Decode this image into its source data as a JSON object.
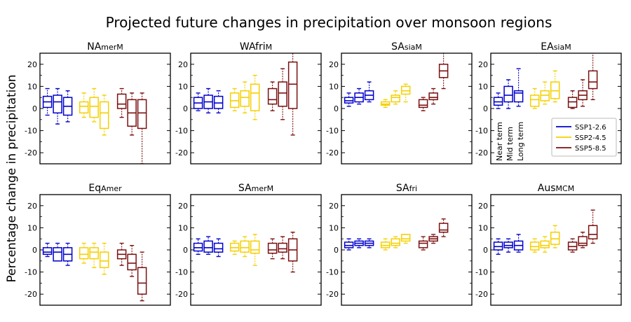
{
  "figure": {
    "title": "Projected future changes in precipitation over monsoon regions",
    "ylabel": "Percentage change in precipitation"
  },
  "colors": {
    "SSP1-2.6": "#0000cc",
    "SSP2-4.5": "#f5d000",
    "SSP5-8.5": "#7a1010"
  },
  "legend": {
    "placement": "lower-right of EAsiaM panel",
    "entries": [
      "SSP1-2.6",
      "SSP2-4.5",
      "SSP5-8.5"
    ]
  },
  "term_labels": [
    "Near term",
    "Mid term",
    "Long term"
  ],
  "chart_data": [
    {
      "type": "box",
      "name_main": "NA",
      "name_sub": "merM",
      "ylim": [
        -25,
        25
      ],
      "yticks": [
        -20,
        -10,
        0,
        10,
        20
      ],
      "scenarios": [
        "SSP1-2.6",
        "SSP2-4.5",
        "SSP5-8.5"
      ],
      "terms": [
        "Near term",
        "Mid term",
        "Long term"
      ],
      "boxes": [
        [
          [
            -3,
            0.5,
            3,
            5.5,
            9
          ],
          [
            -7,
            -2,
            3,
            6,
            9
          ],
          [
            -6,
            -3,
            1,
            5,
            8
          ]
        ],
        [
          [
            -4,
            -2,
            1,
            3,
            7
          ],
          [
            -6,
            -4,
            1,
            5,
            9
          ],
          [
            -12,
            -9,
            -2,
            3,
            6
          ]
        ],
        [
          [
            -4,
            0,
            2,
            6.5,
            9
          ],
          [
            -12,
            -8,
            -2,
            4,
            7
          ],
          [
            -25,
            -9,
            -2,
            4,
            7
          ]
        ]
      ]
    },
    {
      "type": "box",
      "name_main": "WAfri",
      "name_sub": "M",
      "ylim": [
        -25,
        25
      ],
      "yticks": [
        -20,
        -10,
        0,
        10,
        20
      ],
      "scenarios": [
        "SSP1-2.6",
        "SSP2-4.5",
        "SSP5-8.5"
      ],
      "terms": [
        "Near term",
        "Mid term",
        "Long term"
      ],
      "boxes": [
        [
          [
            -1,
            0,
            2.5,
            5,
            7
          ],
          [
            -2,
            0,
            3,
            6,
            9
          ],
          [
            -2,
            0,
            2.5,
            5.5,
            8
          ]
        ],
        [
          [
            -1,
            0.5,
            3.5,
            7,
            9
          ],
          [
            -2,
            1,
            5,
            8,
            12
          ],
          [
            -5,
            -1,
            7,
            11,
            15
          ]
        ],
        [
          [
            -1,
            2,
            4,
            9,
            12
          ],
          [
            -5,
            1,
            7,
            12,
            18
          ],
          [
            -12,
            0,
            11,
            21,
            26
          ]
        ]
      ]
    },
    {
      "type": "box",
      "name_main": "SA",
      "name_sub": "siaM",
      "ylim": [
        -25,
        25
      ],
      "yticks": [
        -20,
        -10,
        0,
        10,
        20
      ],
      "scenarios": [
        "SSP1-2.6",
        "SSP2-4.5",
        "SSP5-8.5"
      ],
      "terms": [
        "Near term",
        "Mid term",
        "Long term"
      ],
      "boxes": [
        [
          [
            1,
            2.5,
            3.5,
            5,
            7
          ],
          [
            2,
            3,
            5,
            7,
            9
          ],
          [
            3,
            4,
            6,
            8,
            12
          ]
        ],
        [
          [
            0.5,
            1.5,
            2,
            3,
            4
          ],
          [
            2,
            3,
            5,
            6,
            8
          ],
          [
            3,
            6.5,
            8,
            10,
            11
          ]
        ],
        [
          [
            -1,
            0.5,
            1.5,
            4,
            5
          ],
          [
            2,
            4,
            5,
            7,
            9
          ],
          [
            9,
            14,
            17,
            20,
            26
          ]
        ]
      ]
    },
    {
      "type": "box",
      "name_main": "EA",
      "name_sub": "siaM",
      "ylim": [
        -25,
        25
      ],
      "yticks": [
        -20,
        -10,
        0,
        10,
        20
      ],
      "scenarios": [
        "SSP1-2.6",
        "SSP2-4.5",
        "SSP5-8.5"
      ],
      "terms": [
        "Near term",
        "Mid term",
        "Long term"
      ],
      "boxes": [
        [
          [
            0,
            1.5,
            3,
            5,
            7
          ],
          [
            0,
            3,
            6,
            10,
            13
          ],
          [
            1,
            3,
            7,
            8,
            18
          ]
        ],
        [
          [
            0,
            1,
            4,
            6,
            9
          ],
          [
            2,
            3.5,
            6,
            8,
            12
          ],
          [
            3,
            4.5,
            8,
            12,
            17
          ]
        ],
        [
          [
            0,
            0.5,
            3,
            5,
            8
          ],
          [
            1,
            4,
            6,
            8,
            13
          ],
          [
            4,
            9,
            12,
            17,
            26
          ]
        ]
      ]
    },
    {
      "type": "box",
      "name_main": "Eq",
      "name_sub": "Amer",
      "ylim": [
        -25,
        25
      ],
      "yticks": [
        -20,
        -10,
        0,
        10,
        20
      ],
      "scenarios": [
        "SSP1-2.6",
        "SSP2-4.5",
        "SSP5-8.5"
      ],
      "terms": [
        "Near term",
        "Mid term",
        "Long term"
      ],
      "boxes": [
        [
          [
            -3,
            -2,
            -1,
            1,
            3
          ],
          [
            -5,
            -5,
            -1,
            1,
            3
          ],
          [
            -7,
            -5,
            -2,
            1,
            3
          ]
        ],
        [
          [
            -6,
            -4,
            -2,
            1,
            3
          ],
          [
            -8,
            -4,
            -1,
            1,
            3
          ],
          [
            -11,
            -8,
            -5,
            -1,
            3
          ]
        ],
        [
          [
            -7,
            -4,
            -2,
            0,
            3
          ],
          [
            -12,
            -9,
            -6,
            -2,
            2
          ],
          [
            -23,
            -20,
            -15,
            -8,
            -1
          ]
        ]
      ]
    },
    {
      "type": "box",
      "name_main": "SA",
      "name_sub": "merM",
      "ylim": [
        -25,
        25
      ],
      "yticks": [
        -20,
        -10,
        0,
        10,
        20
      ],
      "scenarios": [
        "SSP1-2.6",
        "SSP2-4.5",
        "SSP5-8.5"
      ],
      "terms": [
        "Near term",
        "Mid term",
        "Long term"
      ],
      "boxes": [
        [
          [
            -2,
            -0.5,
            1,
            3,
            5
          ],
          [
            -2,
            -1,
            1,
            4,
            6
          ],
          [
            -3,
            -1,
            0.5,
            3,
            5
          ]
        ],
        [
          [
            -2,
            -0.5,
            1,
            3,
            4
          ],
          [
            -3,
            -1,
            1,
            4,
            6
          ],
          [
            -7,
            -1.5,
            0,
            4,
            7
          ]
        ],
        [
          [
            -4,
            -1.5,
            0,
            3,
            5
          ],
          [
            -4,
            -1,
            0.5,
            3,
            6
          ],
          [
            -10,
            -5,
            0,
            5,
            8
          ]
        ]
      ]
    },
    {
      "type": "box",
      "name_main": "SA",
      "name_sub": "fri",
      "ylim": [
        -25,
        25
      ],
      "yticks": [
        -20,
        -10,
        0,
        10,
        20
      ],
      "scenarios": [
        "SSP1-2.6",
        "SSP2-4.5",
        "SSP5-8.5"
      ],
      "terms": [
        "Near term",
        "Mid term",
        "Long term"
      ],
      "boxes": [
        [
          [
            0,
            1,
            2,
            3.5,
            5
          ],
          [
            1,
            2,
            3,
            4,
            5
          ],
          [
            1,
            2,
            3,
            4,
            5
          ]
        ],
        [
          [
            0,
            1,
            2,
            3.5,
            5
          ],
          [
            1,
            2,
            3,
            5,
            6
          ],
          [
            3,
            4,
            5,
            7,
            7
          ]
        ],
        [
          [
            0,
            1,
            3,
            4,
            6
          ],
          [
            3,
            4,
            5,
            6,
            7
          ],
          [
            6,
            8,
            9,
            12,
            14
          ]
        ]
      ]
    },
    {
      "type": "box",
      "name_main": "Aus",
      "name_sub": "MCM",
      "ylim": [
        -25,
        25
      ],
      "yticks": [
        -20,
        -10,
        0,
        10,
        20
      ],
      "scenarios": [
        "SSP1-2.6",
        "SSP2-4.5",
        "SSP5-8.5"
      ],
      "terms": [
        "Near term",
        "Mid term",
        "Long term"
      ],
      "boxes": [
        [
          [
            -2,
            0,
            1.5,
            3.5,
            5
          ],
          [
            -1,
            1,
            2,
            3.5,
            5
          ],
          [
            -1,
            0,
            2,
            4,
            7
          ]
        ],
        [
          [
            -1,
            0,
            1.5,
            3.5,
            5
          ],
          [
            -1,
            1,
            2,
            4,
            6
          ],
          [
            1,
            2.5,
            5,
            8,
            11
          ]
        ],
        [
          [
            -1,
            0,
            1.5,
            3.5,
            5
          ],
          [
            1,
            2,
            3,
            6,
            8
          ],
          [
            3,
            5,
            7,
            11,
            18
          ]
        ]
      ]
    }
  ]
}
